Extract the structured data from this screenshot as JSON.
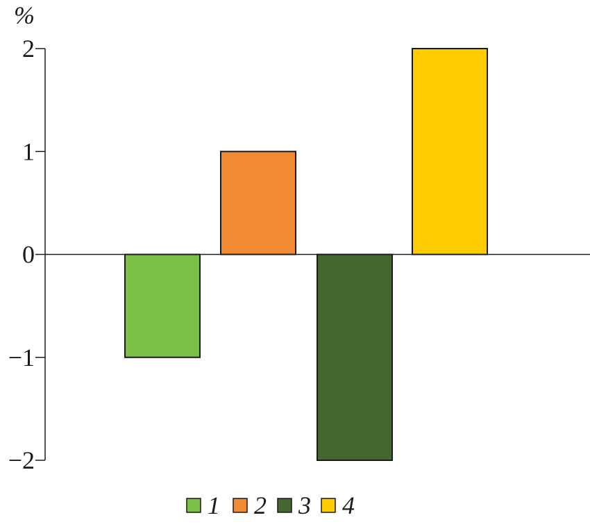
{
  "chart_data": {
    "type": "bar",
    "title": "",
    "xlabel": "",
    "ylabel": "%",
    "ylim": [
      -2,
      2
    ],
    "y_ticks": [
      {
        "value": 2,
        "label": "2"
      },
      {
        "value": 1,
        "label": "1"
      },
      {
        "value": 0,
        "label": "0"
      },
      {
        "value": -1,
        "label": "−1"
      },
      {
        "value": -2,
        "label": "−2"
      }
    ],
    "categories": [
      "1",
      "2",
      "3",
      "4"
    ],
    "values": [
      -1,
      1,
      -2,
      2
    ],
    "colors": [
      "#7bbf47",
      "#f28a34",
      "#44672d",
      "#ffcc00"
    ],
    "grid": false,
    "legend_position": "bottom-center",
    "legend": [
      {
        "label": "1",
        "color": "#7bbf47"
      },
      {
        "label": "2",
        "color": "#f28a34"
      },
      {
        "label": "3",
        "color": "#44672d"
      },
      {
        "label": "4",
        "color": "#ffcc00"
      }
    ]
  }
}
